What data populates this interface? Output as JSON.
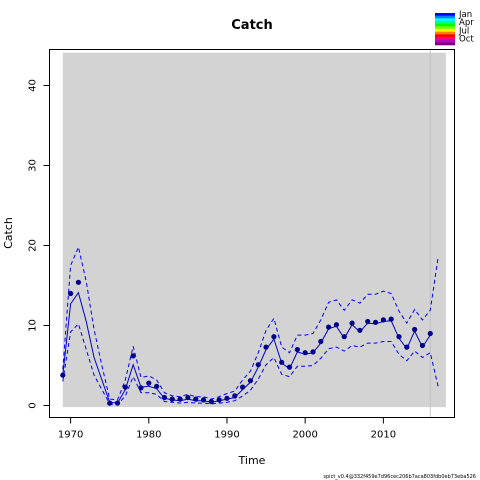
{
  "chart_data": {
    "type": "line",
    "title": "Catch",
    "xlabel": "Time",
    "ylabel": "Catch",
    "xlim": [
      1967.3,
      2019.1
    ],
    "ylim": [
      -1.5,
      44.5
    ],
    "xticks": [
      1970,
      1980,
      1990,
      2000,
      2010
    ],
    "yticks": [
      0,
      10,
      20,
      30,
      40
    ],
    "grid": false,
    "shaded_region": {
      "x": [
        1969,
        2018
      ],
      "color": "#d3d3d3"
    },
    "reference_line_x": 2016,
    "legend": {
      "placement": "top-right",
      "entries": [
        "Jan",
        "Apr",
        "Jul",
        "Oct"
      ]
    },
    "footnote": "spict_v0.4@332f459e7d96cec206b7aca803fdb0eb73eba526",
    "series": [
      {
        "kind": "observed",
        "color": "#00008b",
        "x": [
          1969,
          1970,
          1971,
          1975,
          1976,
          1977,
          1978,
          1979,
          1980,
          1981,
          1982,
          1983,
          1984,
          1985,
          1986,
          1987,
          1988,
          1989,
          1990,
          1991,
          1992,
          1993,
          1994,
          1995,
          1996,
          1997,
          1998,
          1999,
          2000,
          2001,
          2002,
          2003,
          2004,
          2005,
          2006,
          2007,
          2008,
          2009,
          2010,
          2011,
          2012,
          2013,
          2014,
          2015,
          2016
        ],
        "y": [
          3.8,
          14.0,
          15.4,
          0.3,
          0.3,
          2.3,
          6.2,
          2.2,
          2.8,
          2.4,
          1.0,
          0.8,
          0.8,
          1.0,
          0.8,
          0.7,
          0.5,
          0.7,
          0.9,
          1.2,
          2.3,
          3.1,
          5.1,
          7.3,
          8.6,
          5.4,
          4.8,
          7.0,
          6.6,
          6.7,
          8.0,
          9.8,
          10.1,
          8.6,
          10.3,
          9.4,
          10.5,
          10.4,
          10.7,
          10.8,
          8.6,
          7.3,
          9.5,
          7.5,
          9.0
        ]
      },
      {
        "kind": "estimate",
        "color": "#0000cd",
        "x": [
          1969,
          1970,
          1971,
          1972,
          1973,
          1974,
          1975,
          1976,
          1977,
          1978,
          1979,
          1980,
          1981,
          1982,
          1983,
          1984,
          1985,
          1986,
          1987,
          1988,
          1989,
          1990,
          1991,
          1992,
          1993,
          1994,
          1995,
          1996,
          1997,
          1998,
          1999,
          2000,
          2001,
          2002,
          2003,
          2004,
          2005,
          2006,
          2007,
          2008,
          2009,
          2010,
          2011,
          2012,
          2013,
          2014,
          2015,
          2016
        ],
        "y": [
          3.8,
          12.7,
          14.1,
          10.5,
          6.0,
          3.2,
          0.4,
          0.3,
          2.0,
          5.1,
          2.3,
          2.4,
          2.1,
          0.9,
          0.7,
          0.6,
          0.8,
          0.6,
          0.6,
          0.4,
          0.6,
          0.8,
          1.0,
          2.0,
          2.9,
          4.8,
          7.0,
          8.3,
          5.3,
          4.6,
          6.7,
          6.4,
          6.6,
          7.8,
          9.6,
          9.9,
          8.4,
          10.1,
          9.2,
          10.3,
          10.2,
          10.5,
          10.6,
          8.4,
          7.1,
          9.3,
          7.3,
          8.8
        ]
      },
      {
        "kind": "upper-ci",
        "color": "#0000ff",
        "dashed": true,
        "x": [
          1969,
          1970,
          1971,
          1972,
          1973,
          1974,
          1975,
          1976,
          1977,
          1978,
          1979,
          1980,
          1981,
          1982,
          1983,
          1984,
          1985,
          1986,
          1987,
          1988,
          1989,
          1990,
          1991,
          1992,
          1993,
          1994,
          1995,
          1996,
          1997,
          1998,
          1999,
          2000,
          2001,
          2002,
          2003,
          2004,
          2005,
          2006,
          2007,
          2008,
          2009,
          2010,
          2011,
          2012,
          2013,
          2014,
          2015,
          2016,
          2017
        ],
        "y": [
          4.5,
          17.5,
          19.8,
          15.5,
          9.5,
          5.0,
          0.8,
          0.7,
          3.2,
          7.4,
          3.5,
          3.7,
          3.2,
          1.6,
          1.2,
          1.1,
          1.4,
          1.1,
          1.1,
          0.8,
          1.1,
          1.5,
          1.8,
          3.2,
          4.3,
          6.6,
          9.4,
          10.9,
          7.3,
          6.6,
          8.8,
          8.8,
          9.0,
          10.7,
          12.9,
          13.2,
          11.9,
          13.2,
          12.8,
          13.9,
          13.9,
          14.3,
          14.0,
          11.8,
          10.3,
          12.0,
          10.7,
          11.9,
          18.5
        ]
      },
      {
        "kind": "lower-ci",
        "color": "#0000ff",
        "dashed": true,
        "x": [
          1969,
          1970,
          1971,
          1972,
          1973,
          1974,
          1975,
          1976,
          1977,
          1978,
          1979,
          1980,
          1981,
          1982,
          1983,
          1984,
          1985,
          1986,
          1987,
          1988,
          1989,
          1990,
          1991,
          1992,
          1993,
          1994,
          1995,
          1996,
          1997,
          1998,
          1999,
          2000,
          2001,
          2002,
          2003,
          2004,
          2005,
          2006,
          2007,
          2008,
          2009,
          2010,
          2011,
          2012,
          2013,
          2014,
          2015,
          2016,
          2017
        ],
        "y": [
          3.0,
          9.2,
          10.2,
          7.0,
          3.8,
          2.0,
          0.2,
          0.1,
          1.2,
          3.6,
          1.6,
          1.6,
          1.4,
          0.5,
          0.4,
          0.3,
          0.4,
          0.3,
          0.3,
          0.2,
          0.3,
          0.4,
          0.6,
          1.2,
          1.9,
          3.3,
          5.1,
          6.0,
          3.9,
          3.6,
          4.9,
          4.9,
          5.0,
          5.9,
          7.1,
          7.3,
          6.8,
          7.5,
          7.3,
          7.8,
          7.8,
          8.0,
          8.0,
          6.4,
          5.6,
          6.8,
          6.0,
          6.6,
          2.4
        ]
      }
    ]
  }
}
